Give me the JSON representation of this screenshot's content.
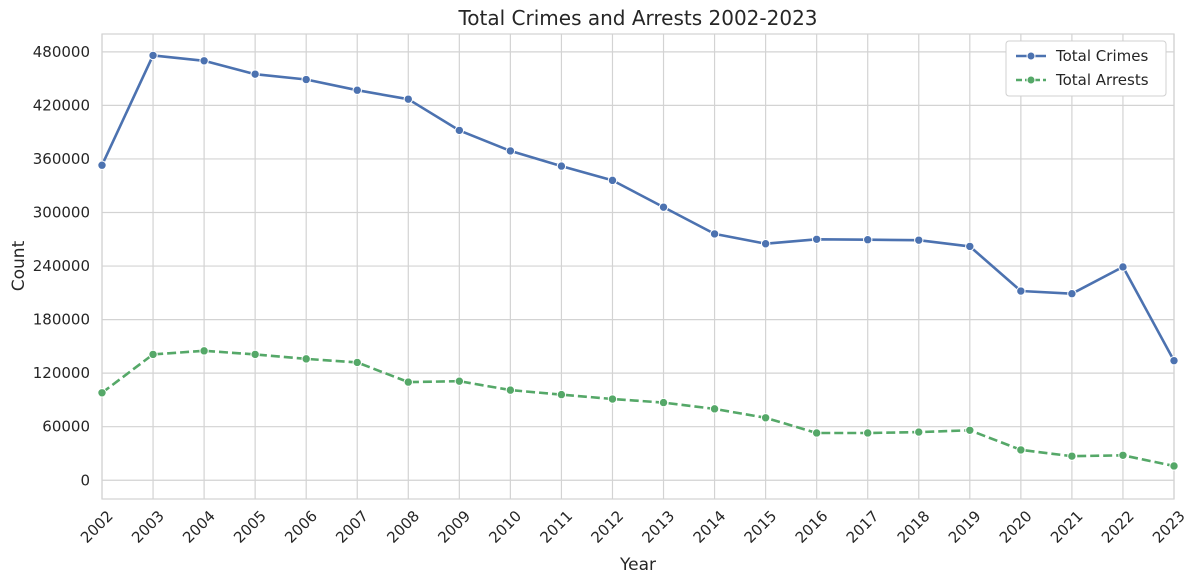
{
  "chart_data": {
    "type": "line",
    "title": "Total Crimes and Arrests 2002-2023",
    "xlabel": "Year",
    "ylabel": "Count",
    "x": [
      "2002",
      "2003",
      "2004",
      "2005",
      "2006",
      "2007",
      "2008",
      "2009",
      "2010",
      "2011",
      "2012",
      "2013",
      "2014",
      "2015",
      "2016",
      "2017",
      "2018",
      "2019",
      "2020",
      "2021",
      "2022",
      "2023"
    ],
    "yticks": [
      "0",
      "60000",
      "120000",
      "180000",
      "240000",
      "300000",
      "360000",
      "420000",
      "480000"
    ],
    "ylim": [
      -21000,
      500000
    ],
    "grid": true,
    "legend_position": "top-right",
    "series": [
      {
        "name": "Total Crimes",
        "color": "#4c72b0",
        "line_style": "solid",
        "values": [
          353000,
          476000,
          470000,
          455000,
          449000,
          437000,
          427000,
          392000,
          369000,
          352000,
          336000,
          306000,
          276000,
          265000,
          270000,
          269500,
          269000,
          262000,
          212000,
          209000,
          239000,
          134000
        ]
      },
      {
        "name": "Total Arrests",
        "color": "#55a868",
        "line_style": "dashed",
        "values": [
          98000,
          141000,
          145000,
          141000,
          136000,
          132000,
          110000,
          111000,
          101000,
          96000,
          91000,
          87000,
          80000,
          70000,
          53000,
          53000,
          54000,
          56000,
          34000,
          27000,
          28000,
          16000
        ]
      }
    ]
  }
}
